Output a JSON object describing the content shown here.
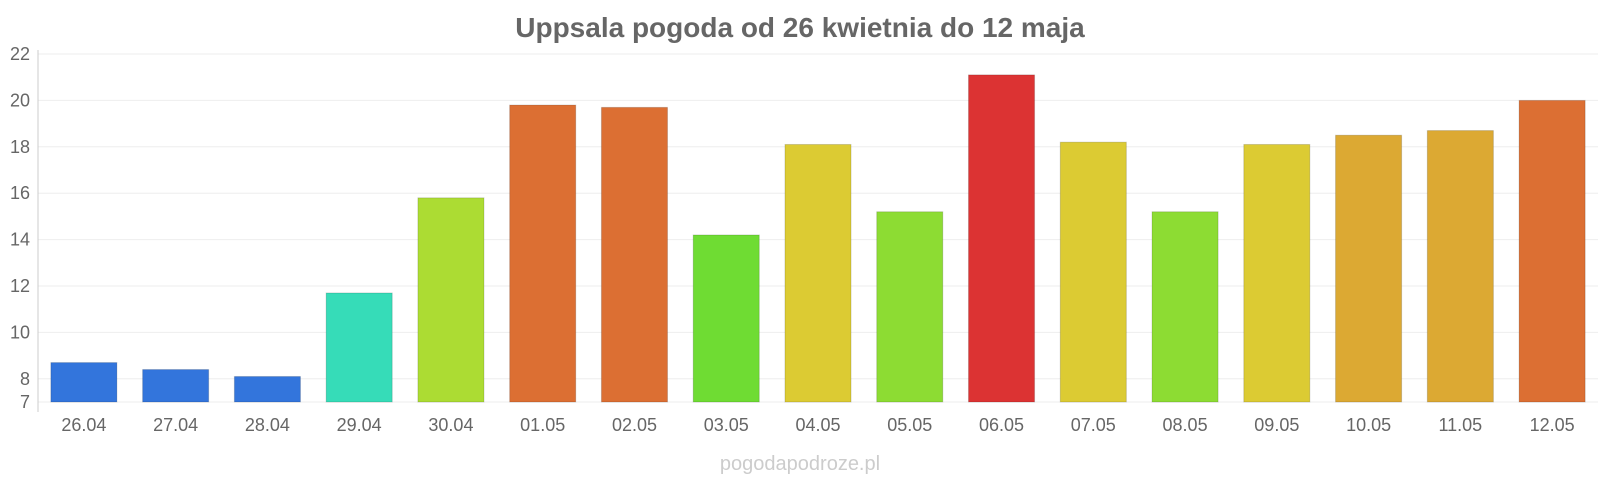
{
  "chart_data": {
    "type": "bar",
    "title": "Uppsala pogoda od 26 kwietnia do 12 maja",
    "xlabel": "",
    "ylabel": "",
    "ylim": [
      7,
      22
    ],
    "yticks": [
      7,
      8,
      10,
      12,
      14,
      16,
      18,
      20,
      22
    ],
    "grid": true,
    "categories": [
      "26.04",
      "27.04",
      "28.04",
      "29.04",
      "30.04",
      "01.05",
      "02.05",
      "03.05",
      "04.05",
      "05.05",
      "06.05",
      "07.05",
      "08.05",
      "09.05",
      "10.05",
      "11.05",
      "12.05"
    ],
    "values": [
      8.7,
      8.4,
      8.1,
      11.7,
      15.8,
      19.8,
      19.7,
      14.2,
      18.1,
      15.2,
      21.1,
      18.2,
      15.2,
      18.1,
      18.5,
      18.7,
      20.0
    ],
    "colors": [
      "#3375dc",
      "#3375dc",
      "#3375dc",
      "#36dcb8",
      "#acdc33",
      "#dc6f33",
      "#dc6f33",
      "#6fdc33",
      "#dccb33",
      "#8ddc33",
      "#dc3333",
      "#dccb33",
      "#8ddc33",
      "#dccb33",
      "#dca933",
      "#dca933",
      "#dc6f33"
    ]
  },
  "watermark": "pogodapodroze.pl"
}
